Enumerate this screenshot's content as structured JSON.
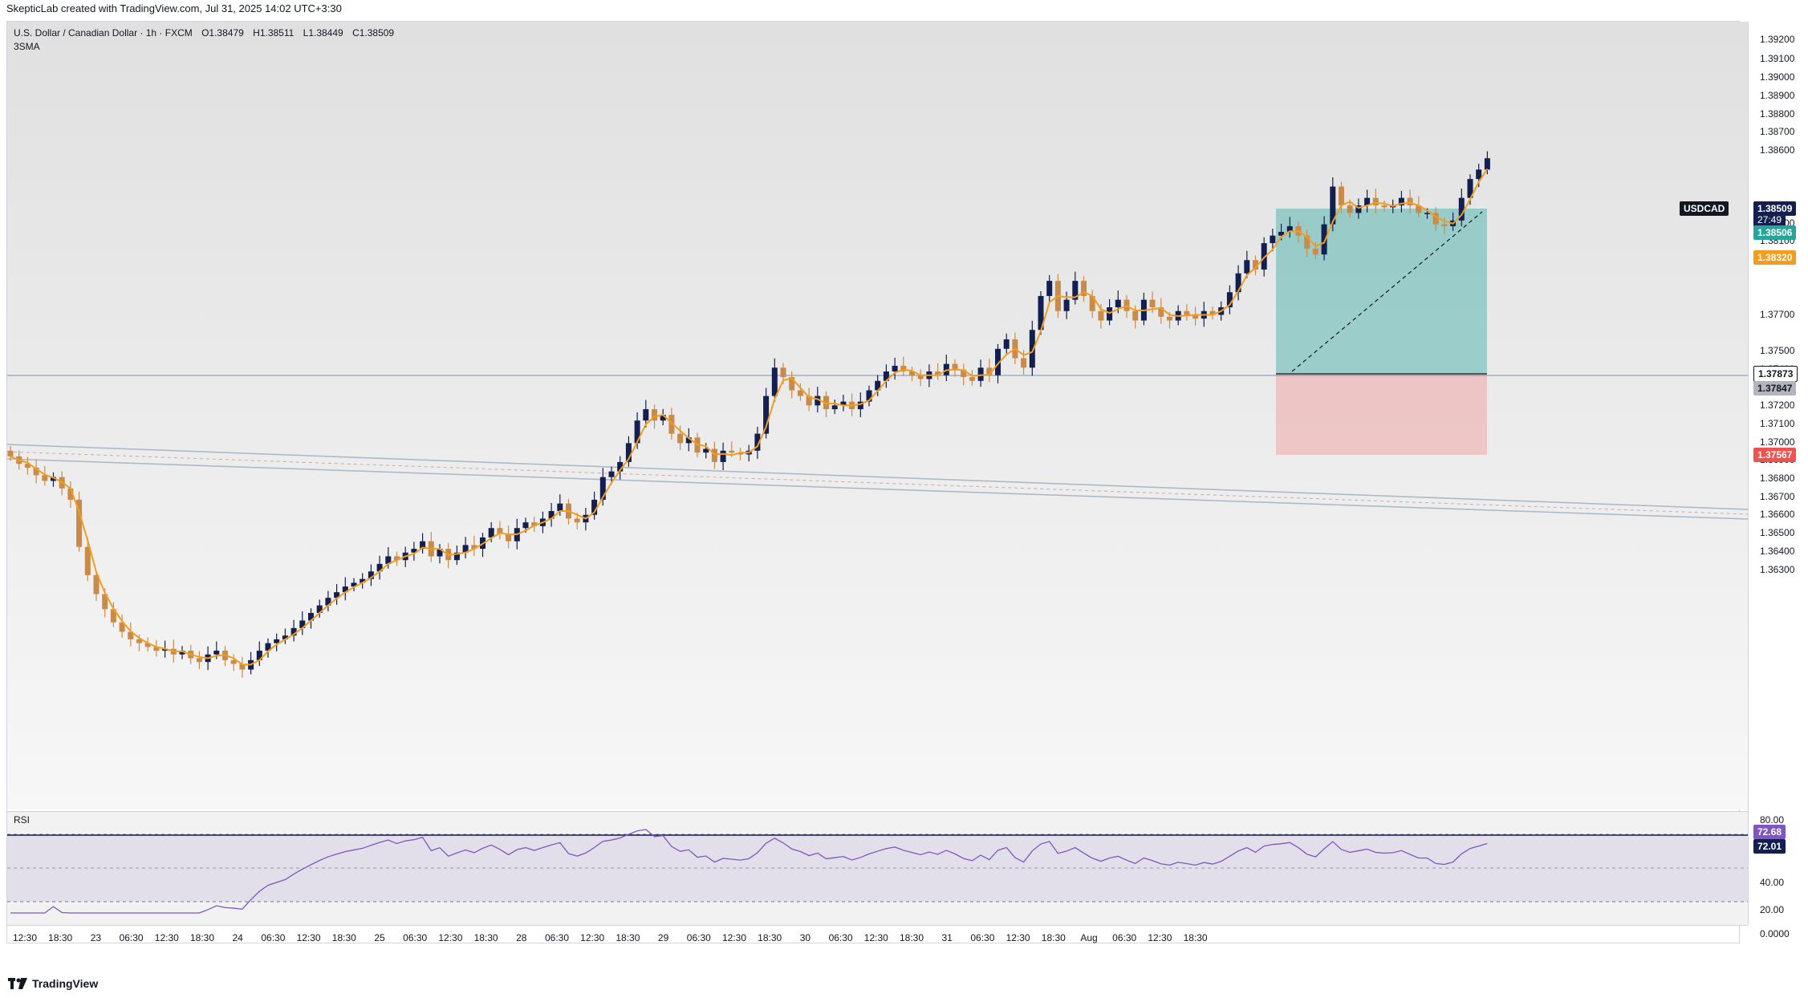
{
  "attribution": "SkepticLab created with TradingView.com, Jul 31, 2025 14:02 UTC+3:30",
  "legend": {
    "title": "U.S. Dollar / Canadian Dollar · 1h · FXCM",
    "open": "O1.38479",
    "high": "H1.38511",
    "low": "L1.38449",
    "close": "C1.38509",
    "indicator": "3SMA"
  },
  "rsi": {
    "label": "RSI",
    "value_purple": "72.68",
    "value_dark": "72.01"
  },
  "price_axis": {
    "labels": [
      "1.39200",
      "1.39100",
      "1.39000",
      "1.38900",
      "1.38800",
      "1.38700",
      "1.38600",
      "1.38200",
      "1.38100",
      "1.38000",
      "1.37700",
      "1.37500",
      "1.37400",
      "1.37300",
      "1.37200",
      "1.37100",
      "1.37000",
      "1.36900",
      "1.36800",
      "1.36700",
      "1.36600",
      "1.36500",
      "1.36400",
      "1.36300"
    ],
    "symbol": "USDCAD",
    "last_price": "1.38509",
    "countdown": "27:49",
    "target_price": "1.38506",
    "sma_price": "1.38320",
    "entry_price": "1.37873",
    "hline_price": "1.37847",
    "stop_price": "1.37567"
  },
  "rsi_axis": [
    "80.00",
    "40.00",
    "20.00",
    "0.0000"
  ],
  "time_axis": [
    "12:30",
    "18:30",
    "23",
    "06:30",
    "12:30",
    "18:30",
    "24",
    "06:30",
    "12:30",
    "18:30",
    "25",
    "06:30",
    "12:30",
    "18:30",
    "28",
    "06:30",
    "12:30",
    "18:30",
    "29",
    "06:30",
    "12:30",
    "18:30",
    "30",
    "06:30",
    "12:30",
    "18:30",
    "31",
    "06:30",
    "12:30",
    "18:30",
    "Aug",
    "06:30",
    "12:30",
    "18:30"
  ],
  "footer": "TradingView",
  "colors": {
    "bull": "#131f4f",
    "bear": "#c98b4a",
    "sma": "#f39c1e",
    "rsi": "#7e57c2",
    "target": "#26a69a",
    "stop": "#ef5350"
  },
  "chart_data": {
    "type": "candlestick",
    "symbol": "USDCAD",
    "timeframe": "1h",
    "ylim": [
      1.3625,
      1.3925
    ],
    "closes": [
      1.3693,
      1.3689,
      1.3687,
      1.3683,
      1.368,
      1.3682,
      1.3676,
      1.367,
      1.3645,
      1.363,
      1.362,
      1.3612,
      1.3605,
      1.36,
      1.3596,
      1.3594,
      1.3592,
      1.359,
      1.3591,
      1.3588,
      1.359,
      1.3586,
      1.3584,
      1.3588,
      1.359,
      1.3585,
      1.3583,
      1.358,
      1.3585,
      1.359,
      1.3594,
      1.3596,
      1.3598,
      1.3602,
      1.3606,
      1.361,
      1.3614,
      1.3618,
      1.3621,
      1.3624,
      1.3626,
      1.3628,
      1.3632,
      1.3636,
      1.364,
      1.3638,
      1.3642,
      1.3644,
      1.3648,
      1.364,
      1.3644,
      1.3638,
      1.3642,
      1.3646,
      1.3644,
      1.365,
      1.3655,
      1.3652,
      1.3648,
      1.3655,
      1.3658,
      1.3656,
      1.366,
      1.3664,
      1.3668,
      1.366,
      1.3658,
      1.3662,
      1.367,
      1.3682,
      1.3685,
      1.369,
      1.37,
      1.3712,
      1.3718,
      1.3712,
      1.3715,
      1.3705,
      1.37,
      1.3703,
      1.3695,
      1.3697,
      1.369,
      1.3696,
      1.3695,
      1.3694,
      1.3696,
      1.3705,
      1.3725,
      1.374,
      1.3735,
      1.3728,
      1.3725,
      1.372,
      1.3725,
      1.3718,
      1.372,
      1.3722,
      1.3718,
      1.3722,
      1.3728,
      1.3733,
      1.3738,
      1.3741,
      1.3738,
      1.3736,
      1.3734,
      1.3738,
      1.3736,
      1.3742,
      1.3739,
      1.3735,
      1.3733,
      1.374,
      1.3736,
      1.375,
      1.3755,
      1.3745,
      1.374,
      1.376,
      1.3778,
      1.3786,
      1.377,
      1.3776,
      1.3786,
      1.3778,
      1.377,
      1.3765,
      1.3772,
      1.3776,
      1.377,
      1.3765,
      1.3776,
      1.3772,
      1.3767,
      1.3765,
      1.377,
      1.3768,
      1.3766,
      1.377,
      1.3768,
      1.3772,
      1.378,
      1.379,
      1.3797,
      1.3792,
      1.3806,
      1.381,
      1.3812,
      1.3815,
      1.381,
      1.3803,
      1.38,
      1.3816,
      1.3836,
      1.3826,
      1.3822,
      1.3826,
      1.383,
      1.3826,
      1.3825,
      1.3826,
      1.383,
      1.3826,
      1.3822,
      1.3822,
      1.3816,
      1.3815,
      1.3818,
      1.383,
      1.384,
      1.3845,
      1.3851
    ]
  }
}
